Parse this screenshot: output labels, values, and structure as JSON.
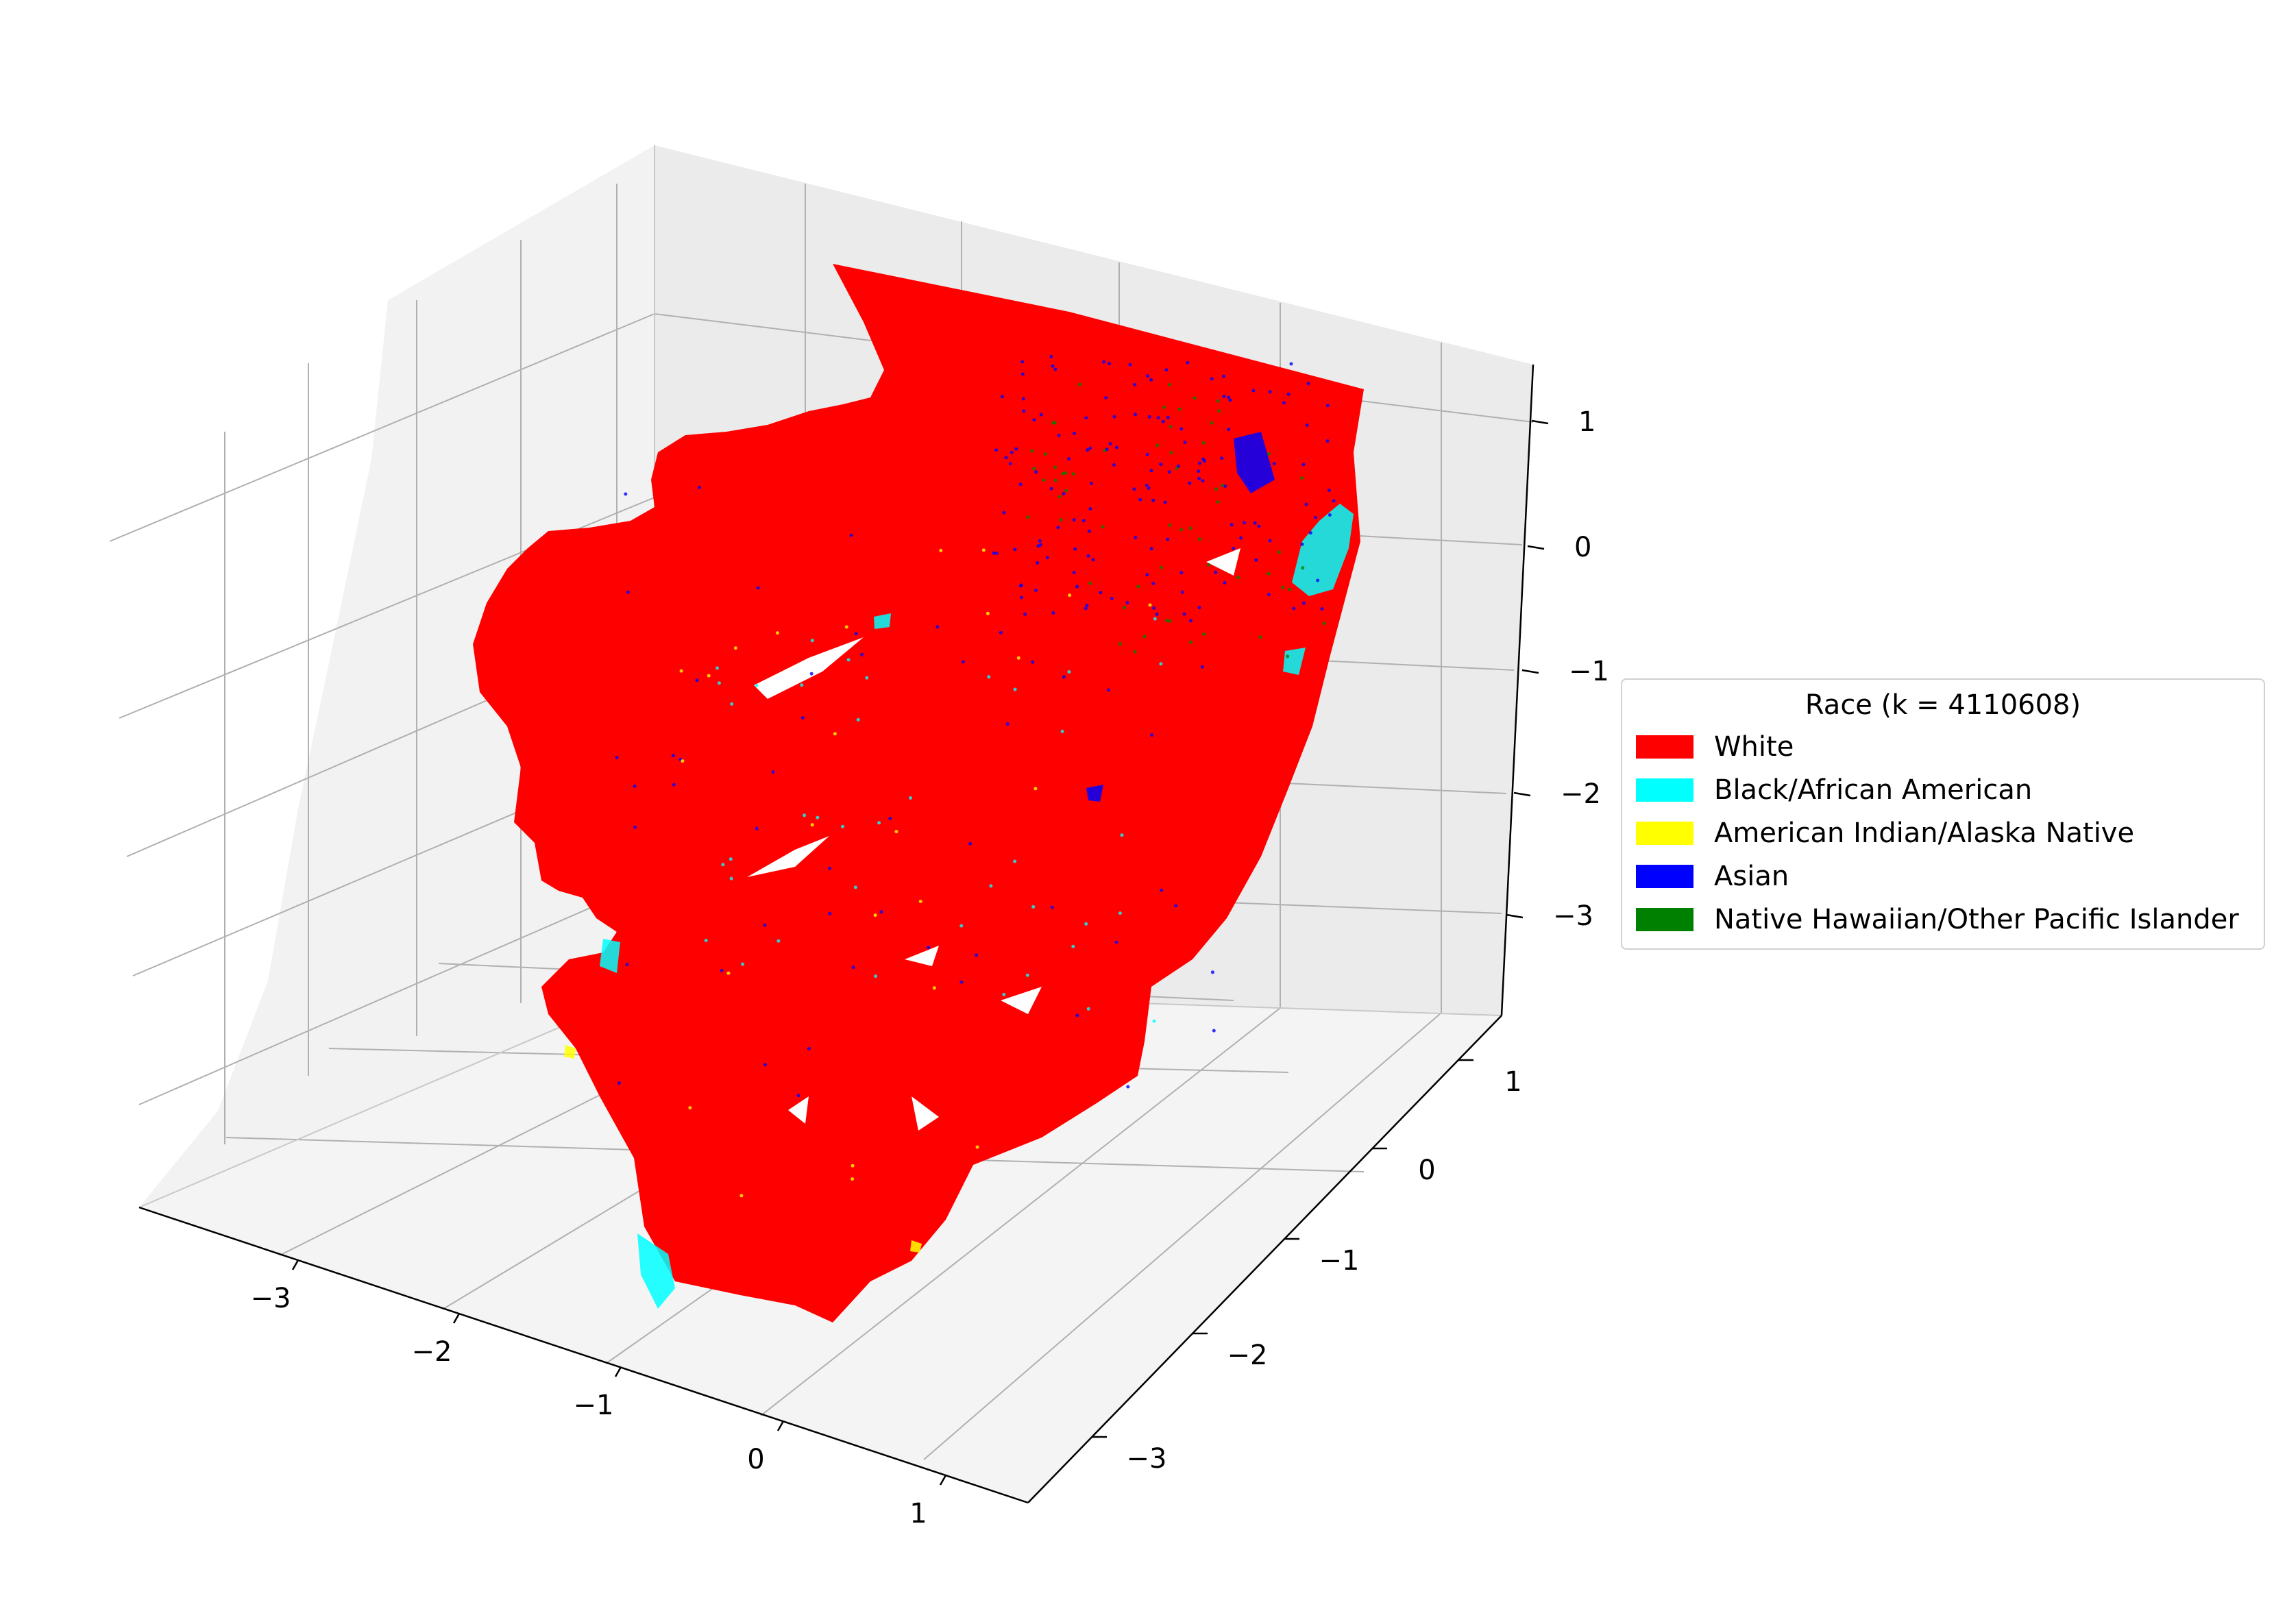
{
  "chart_data": {
    "type": "scatter",
    "projection": "3d",
    "x_axis": {
      "ticks": [
        -3,
        -2,
        -1,
        0,
        1
      ],
      "tick_labels": [
        "−3",
        "−2",
        "−1",
        "0",
        "1"
      ]
    },
    "y_axis": {
      "ticks": [
        -3,
        -2,
        -1,
        0,
        1
      ],
      "tick_labels": [
        "−3",
        "−2",
        "−1",
        "0",
        "1"
      ]
    },
    "z_axis": {
      "ticks": [
        -3,
        -2,
        -1,
        0,
        1
      ],
      "tick_labels": [
        "−3",
        "−2",
        "−1",
        "0",
        "1"
      ]
    },
    "grid": true,
    "legend": {
      "title": "Race (k = 4110608)",
      "placement": "center-right, outside axes",
      "entries": [
        {
          "label": "White",
          "color": "#ff0000"
        },
        {
          "label": "Black/African American",
          "color": "#00ffff"
        },
        {
          "label": "American Indian/Alaska Native",
          "color": "#ffff00"
        },
        {
          "label": "Asian",
          "color": "#0000ff"
        },
        {
          "label": "Native Hawaiian/Other Pacific Islander",
          "color": "#008000"
        }
      ]
    },
    "series": [
      {
        "name": "White",
        "color": "#ff0000"
      },
      {
        "name": "Black/African American",
        "color": "#00ffff"
      },
      {
        "name": "American Indian/Alaska Native",
        "color": "#ffff00"
      },
      {
        "name": "Asian",
        "color": "#0000ff"
      },
      {
        "name": "Native Hawaiian/Other Pacific Islander",
        "color": "#008000"
      }
    ]
  }
}
